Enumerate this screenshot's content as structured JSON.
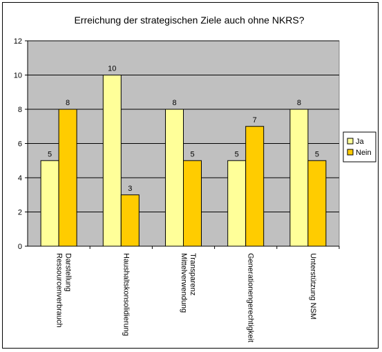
{
  "chart_data": {
    "type": "bar",
    "title": "Erreichung der strategischen Ziele auch ohne NKRS?",
    "categories": [
      [
        "Darstellung",
        "Ressourcenverbrauch"
      ],
      [
        "Haushaltskonsolidierung"
      ],
      [
        "Transparenz",
        "Mittelverwendung"
      ],
      [
        "Generationengerechtigkeit"
      ],
      [
        "Unterstützung NSM"
      ]
    ],
    "series": [
      {
        "name": "Ja",
        "values": [
          5,
          10,
          8,
          5,
          8
        ],
        "color": "#ffff99"
      },
      {
        "name": "Nein",
        "values": [
          8,
          3,
          5,
          7,
          5
        ],
        "color": "#ffcc00"
      }
    ],
    "ylim": [
      0,
      12
    ],
    "yticks": [
      0,
      2,
      4,
      6,
      8,
      10,
      12
    ],
    "grid": true,
    "legend": "right",
    "plot_background": "#c0c0c0"
  }
}
